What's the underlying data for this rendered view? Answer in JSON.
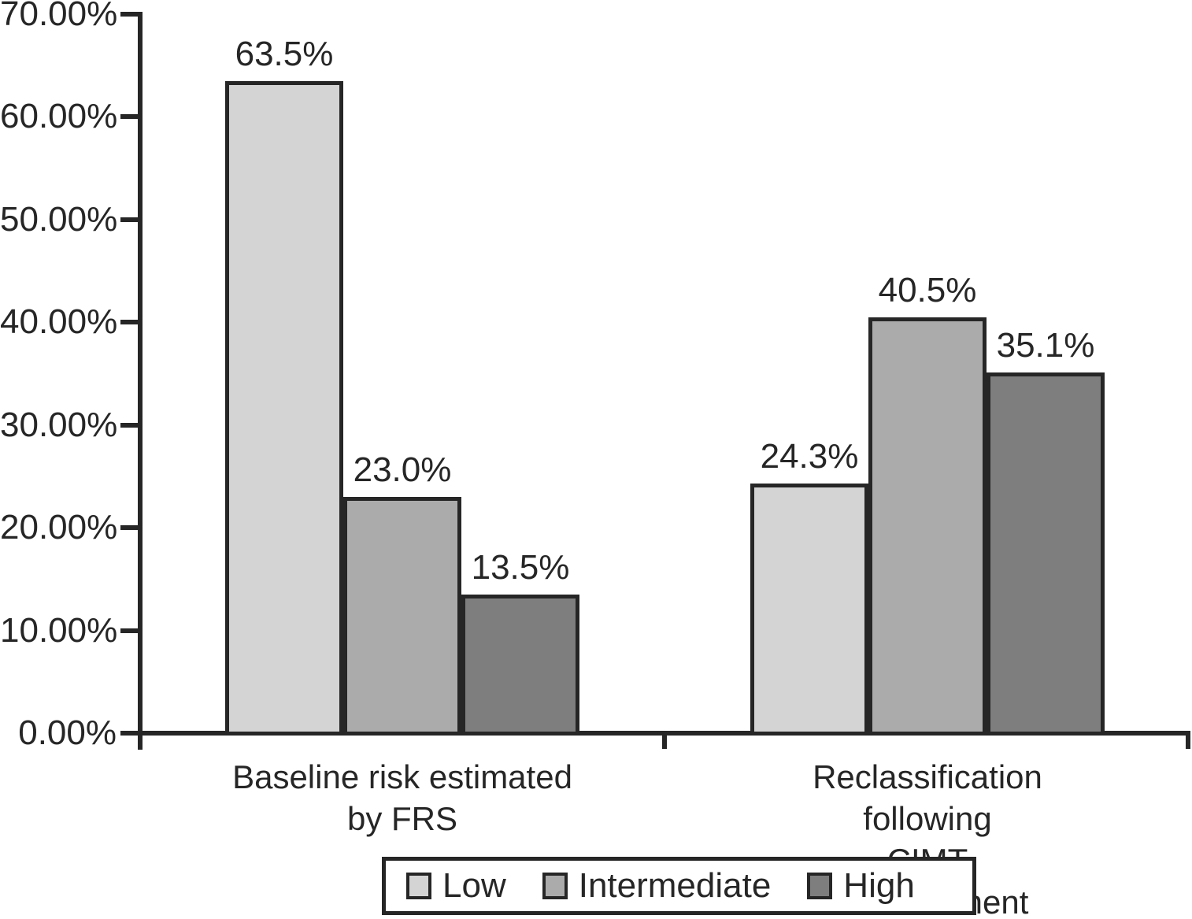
{
  "chart_data": {
    "type": "bar",
    "categories": [
      [
        "Baseline risk estimated",
        "by FRS"
      ],
      [
        "Reclassification following",
        "CIMT measurement"
      ]
    ],
    "series": [
      {
        "name": "Low",
        "values": [
          63.5,
          24.3
        ],
        "labels": [
          "63.5%",
          "24.3%"
        ],
        "color": "#d4d4d4"
      },
      {
        "name": "Intermediate",
        "values": [
          23.0,
          40.5
        ],
        "labels": [
          "23.0%",
          "40.5%"
        ],
        "color": "#ababab"
      },
      {
        "name": "High",
        "values": [
          13.5,
          35.1
        ],
        "labels": [
          "13.5%",
          "35.1%"
        ],
        "color": "#7e7e7e"
      }
    ],
    "y_axis": {
      "tick_labels": [
        "70.00%",
        "60.00%",
        "50.00%",
        "40.00%",
        "30.00%",
        "20.00%",
        "10.00%",
        "0.00%"
      ],
      "min": 0,
      "max": 70,
      "step": 10,
      "unit": "%"
    },
    "legend": {
      "position": "bottom",
      "items": [
        "Low",
        "Intermediate",
        "High"
      ]
    },
    "title": "",
    "xlabel": "",
    "ylabel": "",
    "grid": false,
    "data_labels_shown": true
  },
  "colors": {
    "background": "#ffffff",
    "axis": "#262626",
    "text": "#262626",
    "low": "#d4d4d4",
    "intermediate": "#ababab",
    "high": "#7e7e7e"
  }
}
